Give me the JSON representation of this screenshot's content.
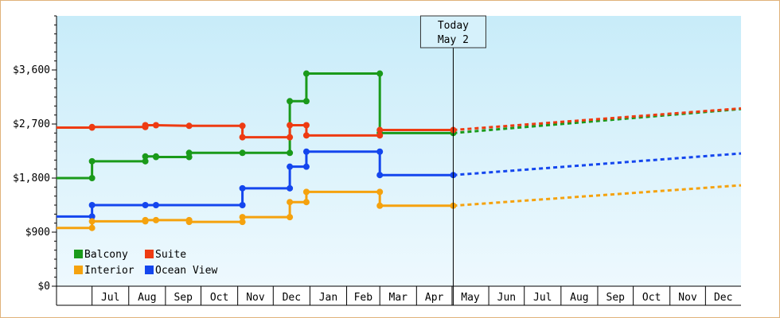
{
  "chart_data": {
    "type": "line",
    "title": "",
    "xlabel": "",
    "ylabel": "",
    "ylim": [
      0,
      4500
    ],
    "y_ticks": [
      0,
      900,
      1800,
      2700,
      3600
    ],
    "y_tick_labels": [
      "$0",
      "$900",
      "$1,800",
      "$2,700",
      "$3,600"
    ],
    "x_range": [
      "2024-06-01",
      "2025-12-31"
    ],
    "x_ticks": [
      {
        "date": "2024-07-01",
        "label": "Jul"
      },
      {
        "date": "2024-08-01",
        "label": "Aug"
      },
      {
        "date": "2024-09-01",
        "label": "Sep"
      },
      {
        "date": "2024-10-01",
        "label": "Oct"
      },
      {
        "date": "2024-11-01",
        "label": "Nov"
      },
      {
        "date": "2024-12-01",
        "label": "Dec"
      },
      {
        "date": "2025-01-01",
        "label": "Jan"
      },
      {
        "date": "2025-02-01",
        "label": "Feb"
      },
      {
        "date": "2025-03-01",
        "label": "Mar"
      },
      {
        "date": "2025-04-01",
        "label": "Apr"
      },
      {
        "date": "2025-05-01",
        "label": "May"
      },
      {
        "date": "2025-06-01",
        "label": "Jun"
      },
      {
        "date": "2025-07-01",
        "label": "Jul"
      },
      {
        "date": "2025-08-01",
        "label": "Aug"
      },
      {
        "date": "2025-09-01",
        "label": "Sep"
      },
      {
        "date": "2025-10-01",
        "label": "Oct"
      },
      {
        "date": "2025-11-01",
        "label": "Nov"
      },
      {
        "date": "2025-12-01",
        "label": "Dec"
      }
    ],
    "today": {
      "date": "2025-05-02",
      "label_line1": "Today",
      "label_line2": "May 2"
    },
    "legend_placement": "bottom-left",
    "grid": false,
    "background_gradient": {
      "top": "#c8ecf9",
      "bottom": "#eef9fe"
    },
    "series": [
      {
        "name": "Balcony",
        "color": "#1a9a1a",
        "points": [
          {
            "date": "2024-06-01",
            "value": 1800
          },
          {
            "date": "2024-07-01",
            "value": 1800
          },
          {
            "date": "2024-07-01",
            "value": 2080
          },
          {
            "date": "2024-08-15",
            "value": 2080
          },
          {
            "date": "2024-08-15",
            "value": 2160
          },
          {
            "date": "2024-08-24",
            "value": 2160
          },
          {
            "date": "2024-08-24",
            "value": 2150
          },
          {
            "date": "2024-09-21",
            "value": 2150
          },
          {
            "date": "2024-09-21",
            "value": 2220
          },
          {
            "date": "2024-11-05",
            "value": 2220
          },
          {
            "date": "2024-11-05",
            "value": 2220
          },
          {
            "date": "2024-12-15",
            "value": 2220
          },
          {
            "date": "2024-12-15",
            "value": 3080
          },
          {
            "date": "2024-12-29",
            "value": 3080
          },
          {
            "date": "2024-12-29",
            "value": 3540
          },
          {
            "date": "2025-03-01",
            "value": 3540
          },
          {
            "date": "2025-03-01",
            "value": 2550
          },
          {
            "date": "2025-05-02",
            "value": 2550
          }
        ],
        "projection": [
          {
            "date": "2025-05-02",
            "value": 2550
          },
          {
            "date": "2025-12-31",
            "value": 2950
          }
        ]
      },
      {
        "name": "Suite",
        "color": "#ee3b12",
        "points": [
          {
            "date": "2024-06-01",
            "value": 2640
          },
          {
            "date": "2024-07-01",
            "value": 2640
          },
          {
            "date": "2024-07-01",
            "value": 2650
          },
          {
            "date": "2024-08-15",
            "value": 2650
          },
          {
            "date": "2024-08-15",
            "value": 2680
          },
          {
            "date": "2024-08-24",
            "value": 2680
          },
          {
            "date": "2024-09-21",
            "value": 2670
          },
          {
            "date": "2024-11-05",
            "value": 2670
          },
          {
            "date": "2024-11-05",
            "value": 2480
          },
          {
            "date": "2024-12-15",
            "value": 2480
          },
          {
            "date": "2024-12-15",
            "value": 2680
          },
          {
            "date": "2024-12-29",
            "value": 2680
          },
          {
            "date": "2024-12-29",
            "value": 2510
          },
          {
            "date": "2025-03-01",
            "value": 2510
          },
          {
            "date": "2025-03-01",
            "value": 2600
          },
          {
            "date": "2025-05-02",
            "value": 2600
          }
        ],
        "projection": [
          {
            "date": "2025-05-02",
            "value": 2600
          },
          {
            "date": "2025-12-31",
            "value": 2960
          }
        ]
      },
      {
        "name": "Ocean View",
        "color": "#1446ee",
        "points": [
          {
            "date": "2024-06-01",
            "value": 1160
          },
          {
            "date": "2024-07-01",
            "value": 1160
          },
          {
            "date": "2024-07-01",
            "value": 1350
          },
          {
            "date": "2024-08-15",
            "value": 1350
          },
          {
            "date": "2024-08-24",
            "value": 1350
          },
          {
            "date": "2024-11-05",
            "value": 1350
          },
          {
            "date": "2024-11-05",
            "value": 1630
          },
          {
            "date": "2024-12-15",
            "value": 1630
          },
          {
            "date": "2024-12-15",
            "value": 1990
          },
          {
            "date": "2024-12-29",
            "value": 1990
          },
          {
            "date": "2024-12-29",
            "value": 2240
          },
          {
            "date": "2025-03-01",
            "value": 2240
          },
          {
            "date": "2025-03-01",
            "value": 1850
          },
          {
            "date": "2025-05-02",
            "value": 1850
          }
        ],
        "projection": [
          {
            "date": "2025-05-02",
            "value": 1850
          },
          {
            "date": "2025-12-31",
            "value": 2210
          }
        ]
      },
      {
        "name": "Interior",
        "color": "#f5a20e",
        "points": [
          {
            "date": "2024-06-01",
            "value": 970
          },
          {
            "date": "2024-07-01",
            "value": 970
          },
          {
            "date": "2024-07-01",
            "value": 1080
          },
          {
            "date": "2024-08-15",
            "value": 1080
          },
          {
            "date": "2024-08-15",
            "value": 1100
          },
          {
            "date": "2024-08-24",
            "value": 1100
          },
          {
            "date": "2024-09-21",
            "value": 1100
          },
          {
            "date": "2024-09-21",
            "value": 1070
          },
          {
            "date": "2024-11-05",
            "value": 1070
          },
          {
            "date": "2024-11-05",
            "value": 1150
          },
          {
            "date": "2024-12-15",
            "value": 1150
          },
          {
            "date": "2024-12-15",
            "value": 1400
          },
          {
            "date": "2024-12-29",
            "value": 1400
          },
          {
            "date": "2024-12-29",
            "value": 1570
          },
          {
            "date": "2025-03-01",
            "value": 1570
          },
          {
            "date": "2025-03-01",
            "value": 1340
          },
          {
            "date": "2025-05-02",
            "value": 1340
          }
        ],
        "projection": [
          {
            "date": "2025-05-02",
            "value": 1340
          },
          {
            "date": "2025-12-31",
            "value": 1680
          }
        ]
      }
    ],
    "legend": [
      {
        "name": "Balcony",
        "color": "#1a9a1a"
      },
      {
        "name": "Suite",
        "color": "#ee3b12"
      },
      {
        "name": "Interior",
        "color": "#f5a20e"
      },
      {
        "name": "Ocean View",
        "color": "#1446ee"
      }
    ]
  }
}
